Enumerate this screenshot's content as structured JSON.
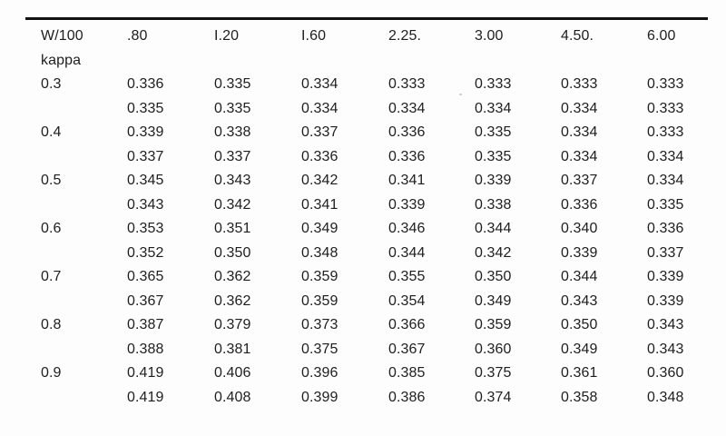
{
  "table": {
    "corner_label_top": "W/100",
    "corner_label_bottom": "kappa",
    "columns": [
      ".80",
      "I.20",
      "I.60",
      "2.25.",
      "3.00",
      "4.50.",
      "6.00"
    ],
    "rows": [
      {
        "kappa": "0.3",
        "values": [
          [
            "0.336",
            "0.335",
            "0.334",
            "0.333",
            "0.333",
            "0.333",
            "0.333"
          ],
          [
            "0.335",
            "0.335",
            "0.334",
            "0.334",
            "0.334",
            "0.334",
            "0.333"
          ]
        ]
      },
      {
        "kappa": "0.4",
        "values": [
          [
            "0.339",
            "0.338",
            "0.337",
            "0.336",
            "0.335",
            "0.334",
            "0.333"
          ],
          [
            "0.337",
            "0.337",
            "0.336",
            "0.336",
            "0.335",
            "0.334",
            "0.334"
          ]
        ]
      },
      {
        "kappa": "0.5",
        "values": [
          [
            "0.345",
            "0.343",
            "0.342",
            "0.341",
            "0.339",
            "0.337",
            "0.334"
          ],
          [
            "0.343",
            "0.342",
            "0.341",
            "0.339",
            "0.338",
            "0.336",
            "0.335"
          ]
        ]
      },
      {
        "kappa": "0.6",
        "values": [
          [
            "0.353",
            "0.351",
            "0.349",
            "0.346",
            "0.344",
            "0.340",
            "0.336"
          ],
          [
            "0.352",
            "0.350",
            "0.348",
            "0.344",
            "0.342",
            "0.339",
            "0.337"
          ]
        ]
      },
      {
        "kappa": "0.7",
        "values": [
          [
            "0.365",
            "0.362",
            "0.359",
            "0.355",
            "0.350",
            "0.344",
            "0.339"
          ],
          [
            "0.367",
            "0.362",
            "0.359",
            "0.354",
            "0.349",
            "0.343",
            "0.339"
          ]
        ]
      },
      {
        "kappa": "0.8",
        "values": [
          [
            "0.387",
            "0.379",
            "0.373",
            "0.366",
            "0.359",
            "0.350",
            "0.343"
          ],
          [
            "0.388",
            "0.381",
            "0.375",
            "0.367",
            "0.360",
            "0.349",
            "0.343"
          ]
        ]
      },
      {
        "kappa": "0.9",
        "values": [
          [
            "0.419",
            "0.406",
            "0.396",
            "0.385",
            "0.375",
            "0.361",
            "0.360"
          ],
          [
            "0.419",
            "0.408",
            "0.399",
            "0.386",
            "0.374",
            "0.358",
            "0.348"
          ]
        ]
      }
    ]
  }
}
